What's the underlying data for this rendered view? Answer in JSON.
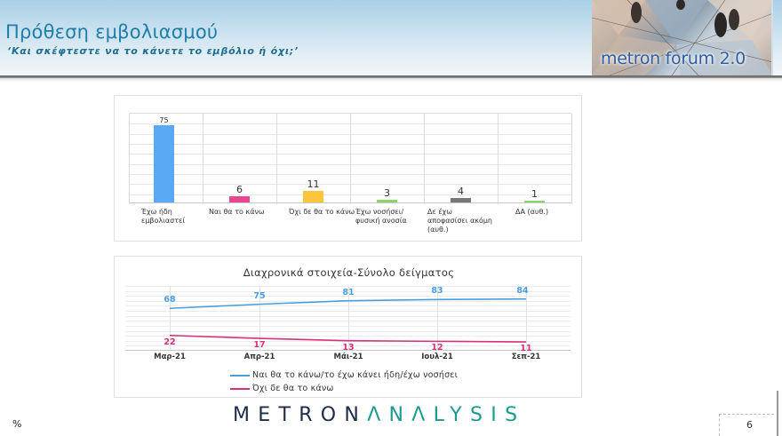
{
  "header": {
    "title": "Πρόθεση εμβολιασμού",
    "subtitle": "‘Και σκέφτεστε να το κάνετε το εμβόλιο ή όχι;’",
    "logo_text": "metron forum 2.0"
  },
  "footer": {
    "unit": "%",
    "brand_part1": "METRON",
    "brand_part2": "ΛNΛLYSIS",
    "page_number": "6"
  },
  "chart_data": [
    {
      "type": "bar",
      "title": "",
      "categories": [
        "Έχω ήδη εμβολιαστεί",
        "Ναι θα το κάνω",
        "Όχι δε θα το κάνω",
        "Έχω νοσήσει/ φυσική ανοσία",
        "Δε έχω αποφασίσει ακόμη (αυθ.)",
        "ΔΑ (αυθ.)"
      ],
      "category_lines": [
        [
          "Έχω ήδη",
          "εμβολιαστεί"
        ],
        [
          "Ναι θα το κάνω"
        ],
        [
          "Όχι δε θα το κάνω"
        ],
        [
          "Έχω νοσήσει/",
          "φυσική ανοσία"
        ],
        [
          "Δε έχω",
          "αποφασίσει ακόμη",
          "(αυθ.)"
        ],
        [
          "ΔΑ (αυθ.)"
        ]
      ],
      "values": [
        75,
        6,
        11,
        3,
        4,
        1
      ],
      "value_labels": [
        "75",
        "6",
        "11",
        "3",
        "4",
        "1"
      ],
      "colors": [
        "#5aa9f5",
        "#e8468e",
        "#fcc53e",
        "#8cd46a",
        "#777777",
        "#8cd46a"
      ],
      "xlabel": "",
      "ylabel": "%",
      "ylim": [
        0,
        80
      ],
      "grid": true
    },
    {
      "type": "line",
      "title": "Διαχρονικά στοιχεία-Σύνολο δείγματος",
      "x": [
        "Μαρ-21",
        "Απρ-21",
        "Μάι-21",
        "Ιουλ-21",
        "Σεπ-21"
      ],
      "series": [
        {
          "name": "Ναι θα το κάνω/το έχω κάνει ήδη/έχω νοσήσει",
          "values": [
            68,
            75,
            81,
            83,
            84
          ],
          "labels": [
            "68",
            "75",
            "81",
            "83",
            "84"
          ],
          "color": "#4a9ee0"
        },
        {
          "name": "Όχι δε θα το κάνω",
          "values": [
            22,
            17,
            13,
            12,
            11
          ],
          "labels": [
            "22",
            "17",
            "13",
            "12",
            "11"
          ],
          "color": "#d6317a"
        }
      ],
      "xlabel": "",
      "ylabel": "",
      "legend_position": "bottom",
      "grid": true
    }
  ]
}
